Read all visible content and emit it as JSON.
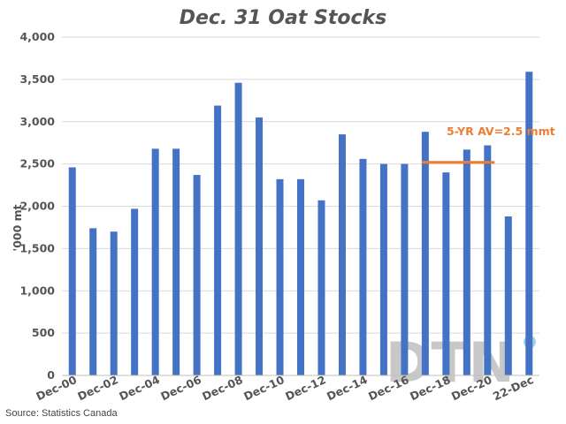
{
  "chart_data": {
    "type": "bar",
    "title": "Dec. 31 Oat Stocks",
    "ylabel": "'000 mt",
    "xlabel": "",
    "ylim": [
      0,
      4000
    ],
    "yticks": [
      0,
      500,
      1000,
      1500,
      2000,
      2500,
      3000,
      3500,
      4000
    ],
    "ytick_labels": [
      "0",
      "500",
      "1,000",
      "1,500",
      "2,000",
      "2,500",
      "3,000",
      "3,500",
      "4,000"
    ],
    "grid": true,
    "categories": [
      "Dec-00",
      "Dec-01",
      "Dec-02",
      "Dec-03",
      "Dec-04",
      "Dec-05",
      "Dec-06",
      "Dec-07",
      "Dec-08",
      "Dec-09",
      "Dec-10",
      "Dec-11",
      "Dec-12",
      "Dec-13",
      "Dec-14",
      "Dec-15",
      "Dec-16",
      "Dec-17",
      "Dec-18",
      "Dec-19",
      "Dec-20",
      "Dec-21",
      "22-Dec"
    ],
    "x_tick_labels": [
      "Dec-00",
      "Dec-02",
      "Dec-04",
      "Dec-06",
      "Dec-08",
      "Dec-10",
      "Dec-12",
      "Dec-14",
      "Dec-16",
      "Dec-18",
      "Dec-20",
      "22-Dec"
    ],
    "x_tick_label_categories": [
      "Dec-00",
      "Dec-02",
      "Dec-04",
      "Dec-06",
      "Dec-08",
      "Dec-10",
      "Dec-12",
      "Dec-14",
      "Dec-16",
      "Dec-18",
      "Dec-20",
      "22-Dec"
    ],
    "values": [
      2460,
      1740,
      1700,
      1970,
      2680,
      2680,
      2370,
      3190,
      3460,
      3050,
      2320,
      2320,
      2070,
      2850,
      2560,
      2500,
      2500,
      2880,
      2400,
      2670,
      2720,
      1880,
      3590
    ],
    "bar_color": "#4472C4",
    "reference_line": {
      "label": "5-YR AV=2.5 mmt",
      "value": 2520,
      "from_category": "Dec-17",
      "to_category": "Dec-20",
      "color": "#ED7D31"
    }
  },
  "source": "Source: Statistics Canada",
  "watermark": "DTN",
  "watermark_colors": {
    "text": "#c8c8c8",
    "dot": "#9fd3ec"
  }
}
